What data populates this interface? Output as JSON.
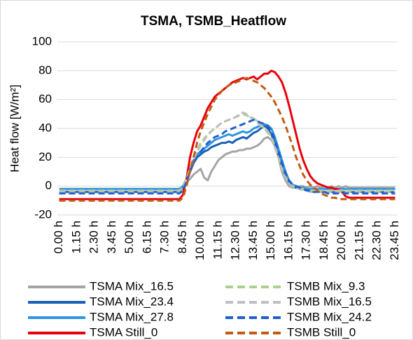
{
  "chart_data": {
    "type": "line",
    "title": "TSMA, TSMB_Heatflow",
    "y_label": "Heat flow [W/m²]",
    "categories": [
      "0.00 h",
      null,
      null,
      null,
      null,
      "1.15 h",
      null,
      null,
      null,
      null,
      "2.30 h",
      null,
      null,
      null,
      null,
      "3.45 h",
      null,
      null,
      null,
      null,
      "5.00 h",
      null,
      null,
      null,
      null,
      "6.15 h",
      null,
      null,
      null,
      null,
      "7.30 h",
      null,
      null,
      null,
      null,
      "8.45 h",
      null,
      null,
      null,
      null,
      "10.00 h",
      null,
      null,
      null,
      null,
      "11.15 h",
      null,
      null,
      null,
      null,
      "12.30 h",
      null,
      null,
      null,
      null,
      "13.45 h",
      null,
      null,
      null,
      null,
      "15.00 h",
      null,
      null,
      null,
      null,
      "16.15 h",
      null,
      null,
      null,
      null,
      "17.30 h",
      null,
      null,
      null,
      null,
      "18.45 h",
      null,
      null,
      null,
      null,
      "20.00 h",
      null,
      null,
      null,
      null,
      "21.15 h",
      null,
      null,
      null,
      null,
      "22.30 h",
      null,
      null,
      null,
      null,
      "23.45 h"
    ],
    "ylim": [
      -20,
      100
    ],
    "yticks": [
      -20,
      0,
      20,
      40,
      60,
      80,
      100
    ],
    "grid": true,
    "series": [
      {
        "name": "TSMA Mix_16.5",
        "color": "#a5a5a5",
        "dashed": false,
        "values": [
          -2,
          -2,
          -2,
          -2,
          -2,
          -2,
          -2,
          -2,
          -2,
          -2,
          -2,
          -2,
          -2,
          -2,
          -2,
          -2,
          -2,
          -2,
          -2,
          -2,
          -2,
          -2,
          -2,
          -2,
          -2,
          -2,
          -2,
          -2,
          -2,
          -2,
          -2,
          -2,
          -2,
          -2,
          -2,
          0,
          3,
          5,
          8,
          10,
          12,
          6,
          4,
          10,
          14,
          18,
          20,
          22,
          23,
          24,
          24,
          25,
          25,
          26,
          26,
          27,
          28,
          30,
          33,
          34,
          32,
          28,
          20,
          10,
          4,
          0,
          -1,
          -1,
          0,
          0,
          -1,
          0,
          -1,
          0,
          -1,
          0,
          -1,
          0,
          -1,
          0,
          -1,
          0,
          -1,
          -1,
          -1,
          -1,
          -1,
          -1,
          -1,
          -1,
          -1,
          -1,
          -1,
          -1,
          -1,
          -1
        ]
      },
      {
        "name": "TSMA Mix_23.4",
        "color": "#1a5fb4",
        "dashed": false,
        "values": [
          -4,
          -4,
          -4,
          -4,
          -4,
          -4,
          -4,
          -4,
          -4,
          -4,
          -4,
          -4,
          -4,
          -4,
          -4,
          -4,
          -4,
          -4,
          -4,
          -4,
          -4,
          -4,
          -4,
          -4,
          -4,
          -4,
          -4,
          -4,
          -4,
          -4,
          -4,
          -4,
          -4,
          -4,
          -4,
          -2,
          3,
          10,
          16,
          20,
          22,
          24,
          25,
          27,
          28,
          29,
          30,
          30,
          31,
          30,
          32,
          33,
          34,
          33,
          35,
          37,
          38,
          40,
          42,
          40,
          36,
          30,
          22,
          14,
          8,
          3,
          0,
          -1,
          -2,
          -2,
          -3,
          -3,
          -4,
          -4,
          -4,
          -4,
          -4,
          -4,
          -4,
          -4,
          -4,
          -4,
          -4,
          -4,
          -4,
          -4,
          -4,
          -4,
          -4,
          -4,
          -4,
          -4,
          -4,
          -4,
          -4,
          -4
        ]
      },
      {
        "name": "TSMA Mix_27.8",
        "color": "#2e95e0",
        "dashed": false,
        "values": [
          -2,
          -2,
          -2,
          -2,
          -2,
          -2,
          -2,
          -2,
          -2,
          -2,
          -2,
          -2,
          -2,
          -2,
          -2,
          -2,
          -2,
          -2,
          -2,
          -2,
          -2,
          -2,
          -2,
          -2,
          -2,
          -2,
          -2,
          -2,
          -2,
          -2,
          -2,
          -2,
          -2,
          -2,
          -2,
          0,
          5,
          12,
          18,
          22,
          24,
          26,
          28,
          30,
          32,
          33,
          34,
          35,
          36,
          35,
          36,
          37,
          38,
          37,
          38,
          40,
          41,
          42,
          43,
          42,
          40,
          34,
          26,
          18,
          10,
          4,
          1,
          0,
          -1,
          -1,
          -2,
          -2,
          -2,
          -2,
          -2,
          -2,
          -2,
          -2,
          -2,
          -2,
          -2,
          -2,
          -2,
          -2,
          -2,
          -2,
          -2,
          -2,
          -2,
          -2,
          -2,
          -2,
          -2,
          -2,
          -2,
          -2
        ]
      },
      {
        "name": "TSMA Still_0",
        "color": "#e8000b",
        "dashed": false,
        "values": [
          -9,
          -9,
          -9,
          -9,
          -9,
          -9,
          -9,
          -9,
          -9,
          -9,
          -9,
          -9,
          -9,
          -9,
          -9,
          -9,
          -9,
          -9,
          -9,
          -9,
          -9,
          -9,
          -9,
          -9,
          -9,
          -9,
          -9,
          -9,
          -9,
          -9,
          -9,
          -9,
          -9,
          -9,
          -9,
          -6,
          5,
          20,
          30,
          38,
          42,
          48,
          54,
          58,
          62,
          64,
          66,
          68,
          70,
          72,
          73,
          74,
          75,
          74,
          75,
          76,
          74,
          76,
          78,
          78,
          80,
          79,
          76,
          72,
          65,
          56,
          46,
          36,
          26,
          18,
          12,
          7,
          4,
          2,
          1,
          0,
          -1,
          -1,
          -2,
          -2,
          -4,
          -7,
          -8,
          -8,
          -8,
          -8,
          -8,
          -8,
          -8,
          -8,
          -8,
          -8,
          -8,
          -8,
          -8,
          -8
        ]
      },
      {
        "name": "TSMB Mix_9.3",
        "color": "#a9d18e",
        "dashed": true,
        "values": [
          -3,
          -3,
          -3,
          -3,
          -3,
          -3,
          -3,
          -3,
          -3,
          -3,
          -3,
          -3,
          -3,
          -3,
          -3,
          -3,
          -3,
          -3,
          -3,
          -3,
          -3,
          -3,
          -3,
          -3,
          -3,
          -3,
          -3,
          -3,
          -3,
          -3,
          -3,
          -3,
          -3,
          -3,
          -3,
          -1,
          5,
          12,
          20,
          25,
          30,
          33,
          36,
          38,
          40,
          42,
          44,
          45,
          46,
          47,
          48,
          49,
          50,
          49,
          48,
          47,
          45,
          43,
          40,
          38,
          34,
          28,
          20,
          12,
          6,
          2,
          0,
          -1,
          -2,
          -2,
          -3,
          -3,
          -3,
          -3,
          -3,
          -3,
          -3,
          -3,
          -3,
          -3,
          -3,
          -3,
          -3,
          -3,
          -3,
          -3,
          -3,
          -3,
          -3,
          -3,
          -3,
          -3,
          -3,
          -3,
          -3,
          -3
        ]
      },
      {
        "name": "TSMB Mix_16.5",
        "color": "#bfbfbf",
        "dashed": true,
        "values": [
          -4,
          -4,
          -4,
          -4,
          -4,
          -4,
          -4,
          -4,
          -4,
          -4,
          -4,
          -4,
          -4,
          -4,
          -4,
          -4,
          -4,
          -4,
          -4,
          -4,
          -4,
          -4,
          -4,
          -4,
          -4,
          -4,
          -4,
          -4,
          -4,
          -4,
          -4,
          -4,
          -4,
          -4,
          -4,
          -2,
          4,
          12,
          18,
          24,
          28,
          32,
          35,
          38,
          40,
          42,
          44,
          45,
          46,
          47,
          48,
          50,
          51,
          50,
          48,
          46,
          44,
          42,
          40,
          37,
          33,
          27,
          20,
          12,
          6,
          2,
          0,
          -1,
          -2,
          -3,
          -3,
          -4,
          -4,
          -4,
          -4,
          -4,
          -4,
          -4,
          -4,
          -4,
          -4,
          -4,
          -4,
          -4,
          -4,
          -4,
          -4,
          -4,
          -4,
          -4,
          -4,
          -4,
          -4,
          -4,
          -4,
          -4
        ]
      },
      {
        "name": "TSMB Mix_24.2",
        "color": "#1f5ecf",
        "dashed": true,
        "values": [
          -5,
          -5,
          -5,
          -5,
          -5,
          -5,
          -5,
          -5,
          -5,
          -5,
          -5,
          -5,
          -5,
          -5,
          -5,
          -5,
          -5,
          -5,
          -5,
          -5,
          -5,
          -5,
          -5,
          -5,
          -5,
          -5,
          -5,
          -5,
          -5,
          -5,
          -5,
          -5,
          -5,
          -5,
          -5,
          -3,
          3,
          10,
          16,
          20,
          24,
          27,
          30,
          32,
          34,
          35,
          36,
          38,
          39,
          40,
          41,
          42,
          43,
          44,
          45,
          46,
          45,
          44,
          43,
          42,
          38,
          32,
          24,
          16,
          9,
          4,
          1,
          0,
          -1,
          -2,
          -3,
          -3,
          -4,
          -4,
          -4,
          -4,
          -5,
          -5,
          -5,
          -5,
          -5,
          -5,
          -5,
          -5,
          -5,
          -5,
          -5,
          -5,
          -5,
          -5,
          -5,
          -5,
          -5,
          -5,
          -5,
          -5
        ]
      },
      {
        "name": "TSMB Still_0",
        "color": "#c55a11",
        "dashed": true,
        "values": [
          -10,
          -10,
          -10,
          -10,
          -10,
          -10,
          -10,
          -10,
          -10,
          -10,
          -10,
          -10,
          -10,
          -10,
          -10,
          -10,
          -10,
          -10,
          -10,
          -10,
          -10,
          -10,
          -10,
          -10,
          -10,
          -10,
          -10,
          -10,
          -10,
          -10,
          -10,
          -10,
          -10,
          -10,
          -10,
          -8,
          0,
          10,
          20,
          30,
          38,
          44,
          50,
          55,
          60,
          63,
          66,
          68,
          70,
          71,
          72,
          73,
          74,
          75,
          74,
          73,
          72,
          70,
          68,
          65,
          62,
          58,
          53,
          48,
          42,
          35,
          28,
          20,
          14,
          8,
          4,
          1,
          -1,
          -3,
          -5,
          -6,
          -7,
          -8,
          -8,
          -9,
          -9,
          -9,
          -9,
          -9,
          -9,
          -9,
          -9,
          -9,
          -9,
          -9,
          -9,
          -9,
          -9,
          -9,
          -9,
          -9
        ]
      }
    ]
  }
}
